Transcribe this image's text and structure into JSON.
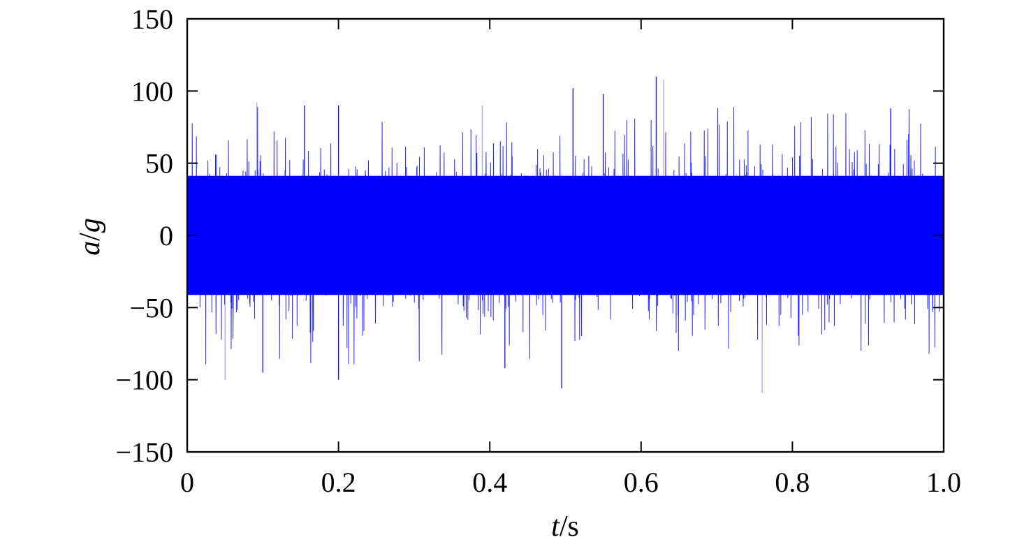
{
  "chart_data": {
    "type": "line",
    "title": "",
    "xlabel_var": "t",
    "xlabel_unit": "/s",
    "ylabel_var1": "a",
    "ylabel_sep": "/",
    "ylabel_var2": "g",
    "xlim": [
      0,
      1.0
    ],
    "ylim": [
      -150,
      150
    ],
    "xticks": [
      0,
      0.2,
      0.4,
      0.6,
      0.8,
      1.0
    ],
    "xtick_labels": [
      "0",
      "0.2",
      "0.4",
      "0.6",
      "0.8",
      "1.0"
    ],
    "yticks": [
      -150,
      -100,
      -50,
      0,
      50,
      100,
      150
    ],
    "ytick_labels": [
      "−150",
      "−100",
      "−50",
      "0",
      "50",
      "100",
      "150"
    ],
    "grid": false,
    "legend": "none",
    "series": [
      {
        "color": "#0000ff",
        "description_values": "dense random vibration signal, roughly zero mean",
        "envelope_typical": [
          -55,
          55
        ],
        "peak_max": 110,
        "peak_min": -109,
        "notable_peaks": [
          {
            "x": 0.092,
            "y": 92
          },
          {
            "x": 0.155,
            "y": 90
          },
          {
            "x": 0.2,
            "y": 90
          },
          {
            "x": 0.39,
            "y": 90
          },
          {
            "x": 0.51,
            "y": 102
          },
          {
            "x": 0.62,
            "y": 110
          },
          {
            "x": 0.63,
            "y": 108
          },
          {
            "x": 0.55,
            "y": 98
          },
          {
            "x": 0.93,
            "y": 88
          },
          {
            "x": 0.05,
            "y": -100
          },
          {
            "x": 0.2,
            "y": -100
          },
          {
            "x": 0.495,
            "y": -106
          },
          {
            "x": 0.76,
            "y": -109
          },
          {
            "x": 0.1,
            "y": -95
          },
          {
            "x": 0.42,
            "y": -92
          }
        ]
      }
    ]
  }
}
